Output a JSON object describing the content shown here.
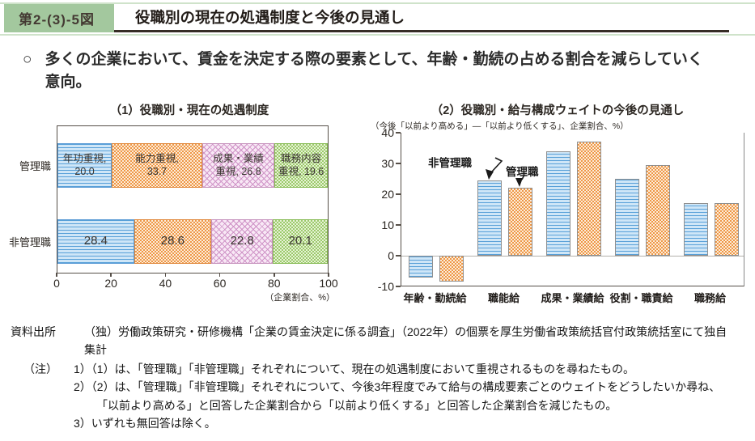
{
  "header": {
    "badge": "第2-(3)-5図",
    "title": "役職別の現在の処遇制度と今後の見通し"
  },
  "lead": {
    "marker": "○",
    "line1": "多くの企業において、賃金を決定する際の要素として、年齢・勤続の占める割合を減らしていく",
    "line2": "意向。"
  },
  "colors": {
    "badge_green": "#a3c89e",
    "header_line_green": "#cfe3ca",
    "title_underline": "#362c25",
    "series_blue": "#5b9bd5",
    "series_orange": "#ee9747",
    "segment_pink": "#cf93c7",
    "segment_green": "#9cc96b",
    "axis": "#564f48",
    "zero_line": "#b3b0ab"
  },
  "chart_data": [
    {
      "type": "bar",
      "orientation": "horizontal-stacked",
      "title": "（1）役職別・現在の処遇制度",
      "categories": [
        "管理職",
        "非管理職"
      ],
      "segments": [
        "年功重視",
        "能力重視",
        "成果・業績重視",
        "職務内容重視"
      ],
      "series": [
        {
          "category": "管理職",
          "values": [
            20.0,
            33.7,
            26.8,
            19.6
          ],
          "labels": [
            [
              "年功重視,",
              "20.0"
            ],
            [
              "能力重視,",
              "33.7"
            ],
            [
              "成果・業績",
              "重視, 26.8"
            ],
            [
              "職務内容",
              "重視, 19.6"
            ]
          ]
        },
        {
          "category": "非管理職",
          "values": [
            28.4,
            28.6,
            22.8,
            20.1
          ],
          "labels": [
            [
              "28.4"
            ],
            [
              "28.6"
            ],
            [
              "22.8"
            ],
            [
              "20.1"
            ]
          ]
        }
      ],
      "xlim": [
        0,
        100
      ],
      "xticks": [
        0,
        20,
        40,
        60,
        80,
        100
      ],
      "xlabel": "（企業割合、%）",
      "grid": false
    },
    {
      "type": "bar",
      "orientation": "vertical-grouped",
      "title": "（2）役職別・給与構成ウェイトの今後の見通し",
      "subtitle": "（今後「以前より高める」―「以前より低くする」、企業割合、%）",
      "categories": [
        "年齢・勤続給",
        "職能給",
        "成果・業績給",
        "役割・職責給",
        "職務給"
      ],
      "series": [
        {
          "name": "非管理職",
          "values": [
            -7.0,
            24.5,
            34.0,
            25.0,
            17.2
          ]
        },
        {
          "name": "管理職",
          "values": [
            -8.5,
            22.0,
            37.0,
            29.5,
            17.2
          ]
        }
      ],
      "ylim": [
        -10,
        40
      ],
      "yticks": [
        40,
        30,
        20,
        10,
        0,
        -10
      ],
      "legend_position": "annotation-arrows",
      "grid": false
    }
  ],
  "notes": {
    "source_label": "資料出所",
    "source_text": "（独）労働政策研究・研修機構「企業の賃金決定に係る調査」（2022年）の個票を厚生労働省政策統括官付政策統括室にて独自集計",
    "note_label": "（注）",
    "items": [
      "1）（1）は、「管理職」「非管理職」それぞれについて、現在の処遇制度において重視されるものを尋ねたもの。",
      "2）（2）は、「管理職」「非管理職」それぞれについて、今後3年程度でみて給与の構成要素ごとのウェイトをどうしたいか尋ね、「以前より高める」と回答した企業割合から「以前より低くする」と回答した企業割合を減じたもの。",
      "3）いずれも無回答は除く。"
    ]
  }
}
